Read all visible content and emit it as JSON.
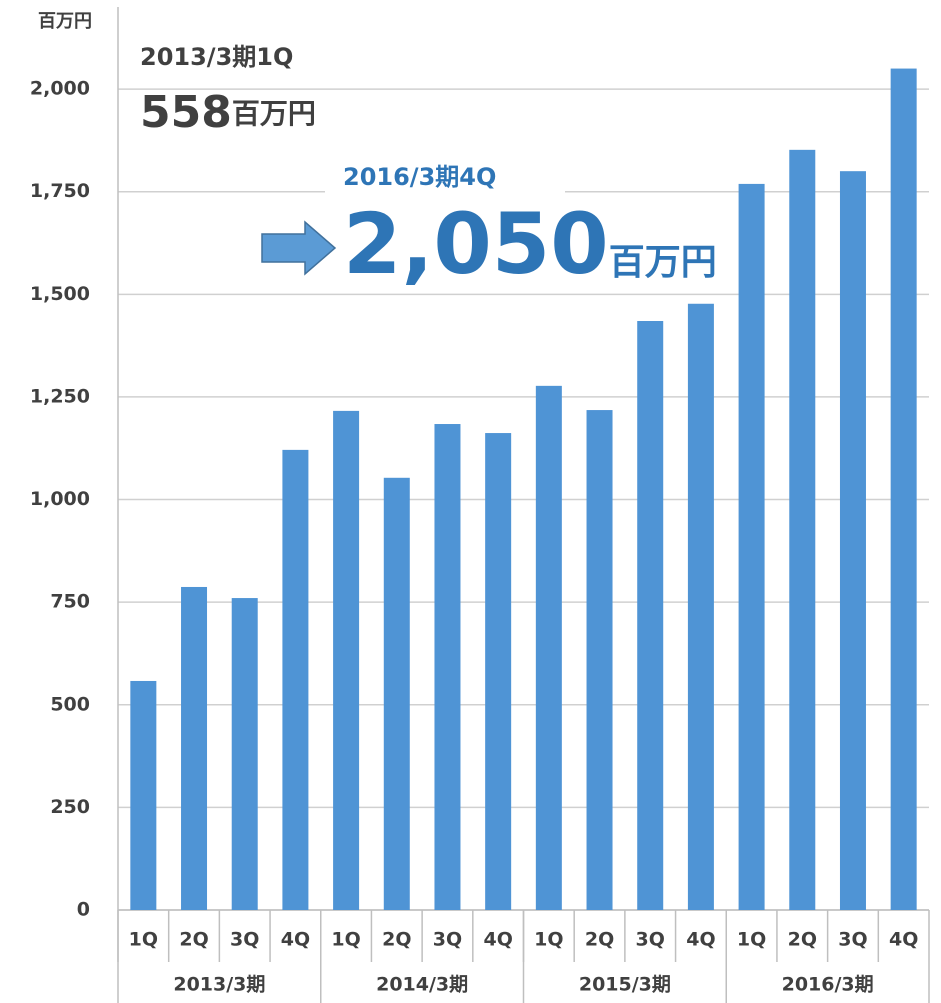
{
  "chart_data": {
    "type": "bar",
    "y_unit": "百万円",
    "categories": [
      "1Q",
      "2Q",
      "3Q",
      "4Q",
      "1Q",
      "2Q",
      "3Q",
      "4Q",
      "1Q",
      "2Q",
      "3Q",
      "4Q",
      "1Q",
      "2Q",
      "3Q",
      "4Q"
    ],
    "groups": [
      "2013/3期",
      "2014/3期",
      "2015/3期",
      "2016/3期"
    ],
    "values": [
      558,
      787,
      760,
      1121,
      1216,
      1053,
      1184,
      1162,
      1277,
      1218,
      1435,
      1477,
      1769,
      1852,
      1800,
      2050
    ],
    "color": "#4f94d5",
    "ylim": [
      0,
      2200
    ],
    "yticks": [
      0,
      250,
      500,
      750,
      {
        "value": 1000,
        "label": "1,000"
      },
      {
        "value": 1250,
        "label": "1,250"
      },
      {
        "value": 1500,
        "label": "1,500"
      },
      {
        "value": 1750,
        "label": "1,750"
      },
      {
        "value": 2000,
        "label": "2,000"
      }
    ],
    "grid": true,
    "annotations": [
      {
        "period": "2013/3期1Q",
        "amount": "558",
        "unit": "百万円"
      },
      {
        "period": "2016/3期4Q",
        "amount": "2,050",
        "unit": "百万円"
      }
    ]
  }
}
